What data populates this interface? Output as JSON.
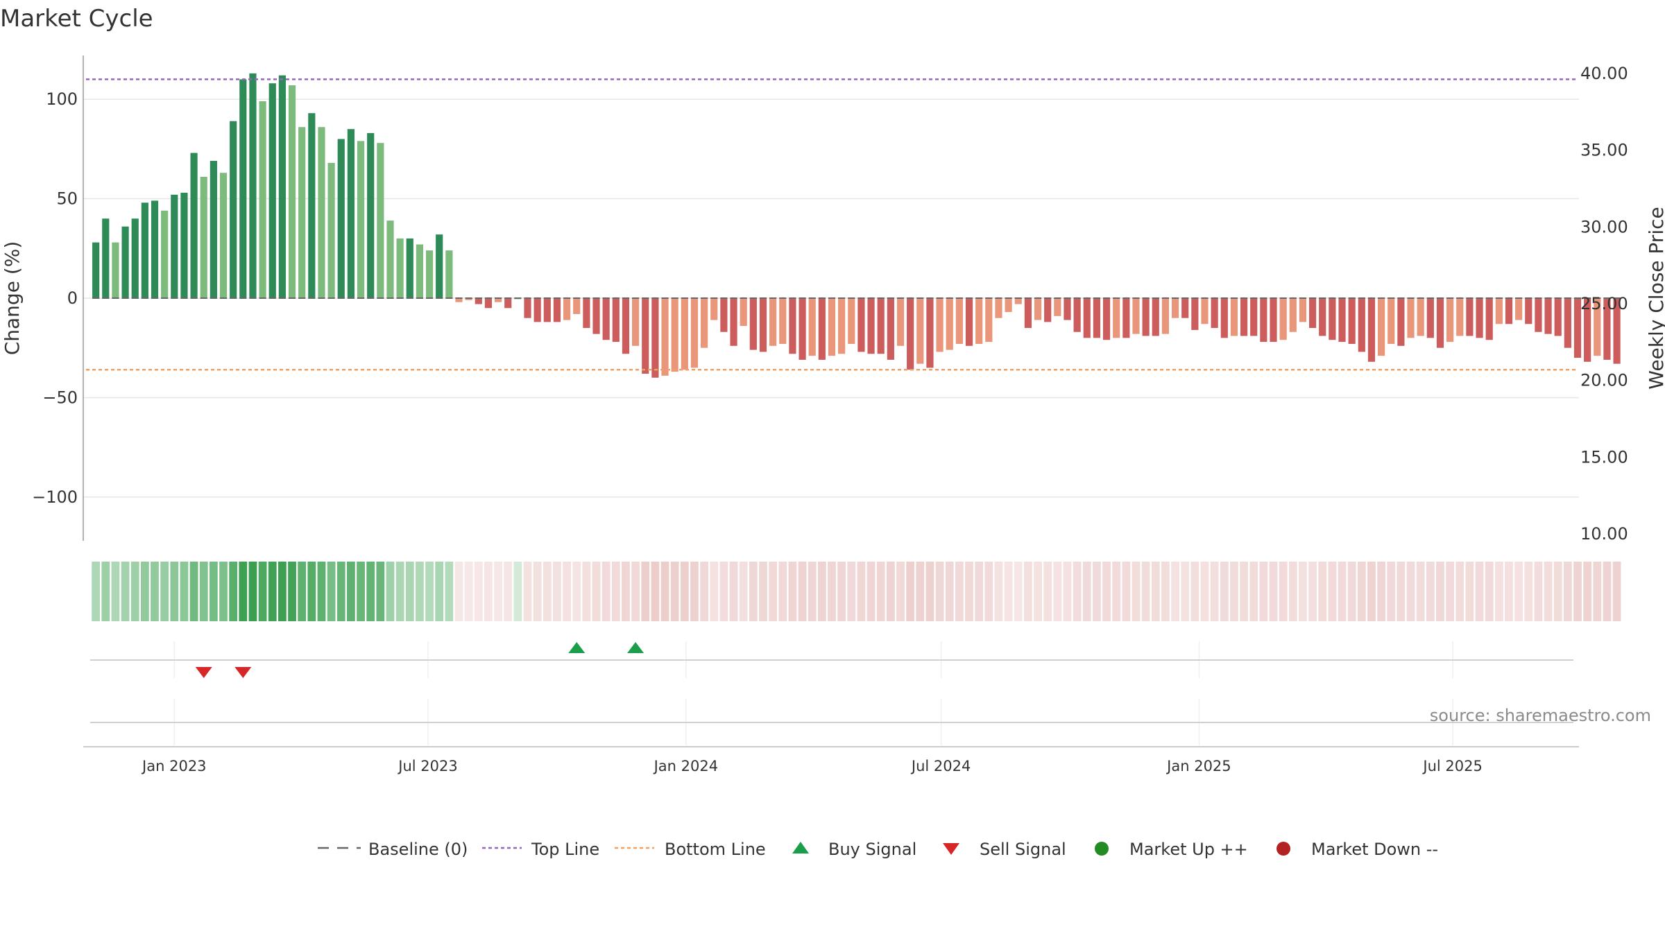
{
  "chart_data": {
    "type": "bar",
    "title": "Market Cycle",
    "ylabel": "Change (%)",
    "y2label": "Weekly Close Price",
    "ylim": [
      -122,
      122
    ],
    "y2lim": [
      10,
      40
    ],
    "yticks": [
      100,
      50,
      0,
      -50,
      -100
    ],
    "ytick_labels": [
      "100",
      "50",
      "0",
      "−50",
      "−100"
    ],
    "y2ticks": [
      40,
      35,
      30,
      25,
      20,
      15,
      10
    ],
    "y2tick_labels": [
      "40.00",
      "35.00",
      "30.00",
      "25.00",
      "20.00",
      "15.00",
      "10.00"
    ],
    "grid": true,
    "x_start": "2022-10-30",
    "x_end": "2025-09-28",
    "x_ticks": [
      {
        "date": "2023-01-01",
        "label": "Jan 2023"
      },
      {
        "date": "2023-07-01",
        "label": "Jul 2023"
      },
      {
        "date": "2024-01-01",
        "label": "Jan 2024"
      },
      {
        "date": "2024-07-01",
        "label": "Jul 2024"
      },
      {
        "date": "2025-01-01",
        "label": "Jan 2025"
      },
      {
        "date": "2025-07-01",
        "label": "Jul 2025"
      }
    ],
    "top_line": 110,
    "bottom_line": -36,
    "baseline": 0,
    "first_week": "2022-11-06",
    "values": [
      28,
      40,
      28,
      36,
      40,
      48,
      49,
      44,
      52,
      53,
      73,
      61,
      69,
      63,
      89,
      110,
      113,
      99,
      108,
      112,
      107,
      86,
      93,
      86,
      68,
      80,
      85,
      79,
      83,
      78,
      39,
      30,
      30,
      27,
      24,
      32,
      24,
      -2,
      -1,
      -3,
      -5,
      -2,
      -5,
      0,
      -10,
      -12,
      -12,
      -12,
      -11,
      -8,
      -15,
      -18,
      -21,
      -22,
      -28,
      -24,
      -38,
      -40,
      -39,
      -37,
      -36,
      -35,
      -25,
      -11,
      -17,
      -24,
      -14,
      -26,
      -27,
      -24,
      -23,
      -28,
      -31,
      -29,
      -31,
      -29,
      -28,
      -23,
      -27,
      -28,
      -28,
      -31,
      -24,
      -36,
      -33,
      -35,
      -27,
      -26,
      -23,
      -24,
      -23,
      -22,
      -10,
      -7,
      -3,
      -15,
      -11,
      -12,
      -9,
      -11,
      -17,
      -20,
      -20,
      -21,
      -20,
      -20,
      -18,
      -19,
      -19,
      -18,
      -10,
      -10,
      -16,
      -13,
      -15,
      -20,
      -19,
      -19,
      -19,
      -22,
      -22,
      -21,
      -17,
      -12,
      -15,
      -19,
      -21,
      -22,
      -23,
      -27,
      -32,
      -29,
      -23,
      -24,
      -20,
      -19,
      -20,
      -25,
      -22,
      -19,
      -19,
      -20,
      -21,
      -13,
      -13,
      -11,
      -13,
      -17,
      -18,
      -19,
      -25,
      -30,
      -32,
      -29,
      -31,
      -33
    ],
    "bar_colors": {
      "up_strong": "#2e8b57",
      "up_light": "#7dbb7d",
      "down_strong": "#cd5c5c",
      "down_light": "#e9967a"
    },
    "strip_colors": {
      "up": "#3a9f4f",
      "down": "#d4908c"
    },
    "buy_signals": [
      "2023-10-15",
      "2023-11-26"
    ],
    "sell_signals": [
      "2023-01-22",
      "2023-02-19"
    ],
    "colors": {
      "top_line": "#9467bd",
      "bottom_line": "#f0a060",
      "buy": "#1a9e4a",
      "sell": "#d62728",
      "market_up": "#228b22",
      "market_down": "#b22222",
      "baseline": "#666666"
    },
    "legend_position": "bottom-center",
    "legend": [
      {
        "symbol": "dash-line",
        "label": "Baseline (0)"
      },
      {
        "symbol": "dotted-purple",
        "label": "Top Line"
      },
      {
        "symbol": "dotted-orange",
        "label": "Bottom Line"
      },
      {
        "symbol": "triangle-up-green",
        "label": "Buy Signal"
      },
      {
        "symbol": "triangle-down-red",
        "label": "Sell Signal"
      },
      {
        "symbol": "circle-green",
        "label": "Market Up ++"
      },
      {
        "symbol": "circle-red",
        "label": "Market Down --"
      }
    ],
    "source": "source: sharemaestro.com"
  }
}
